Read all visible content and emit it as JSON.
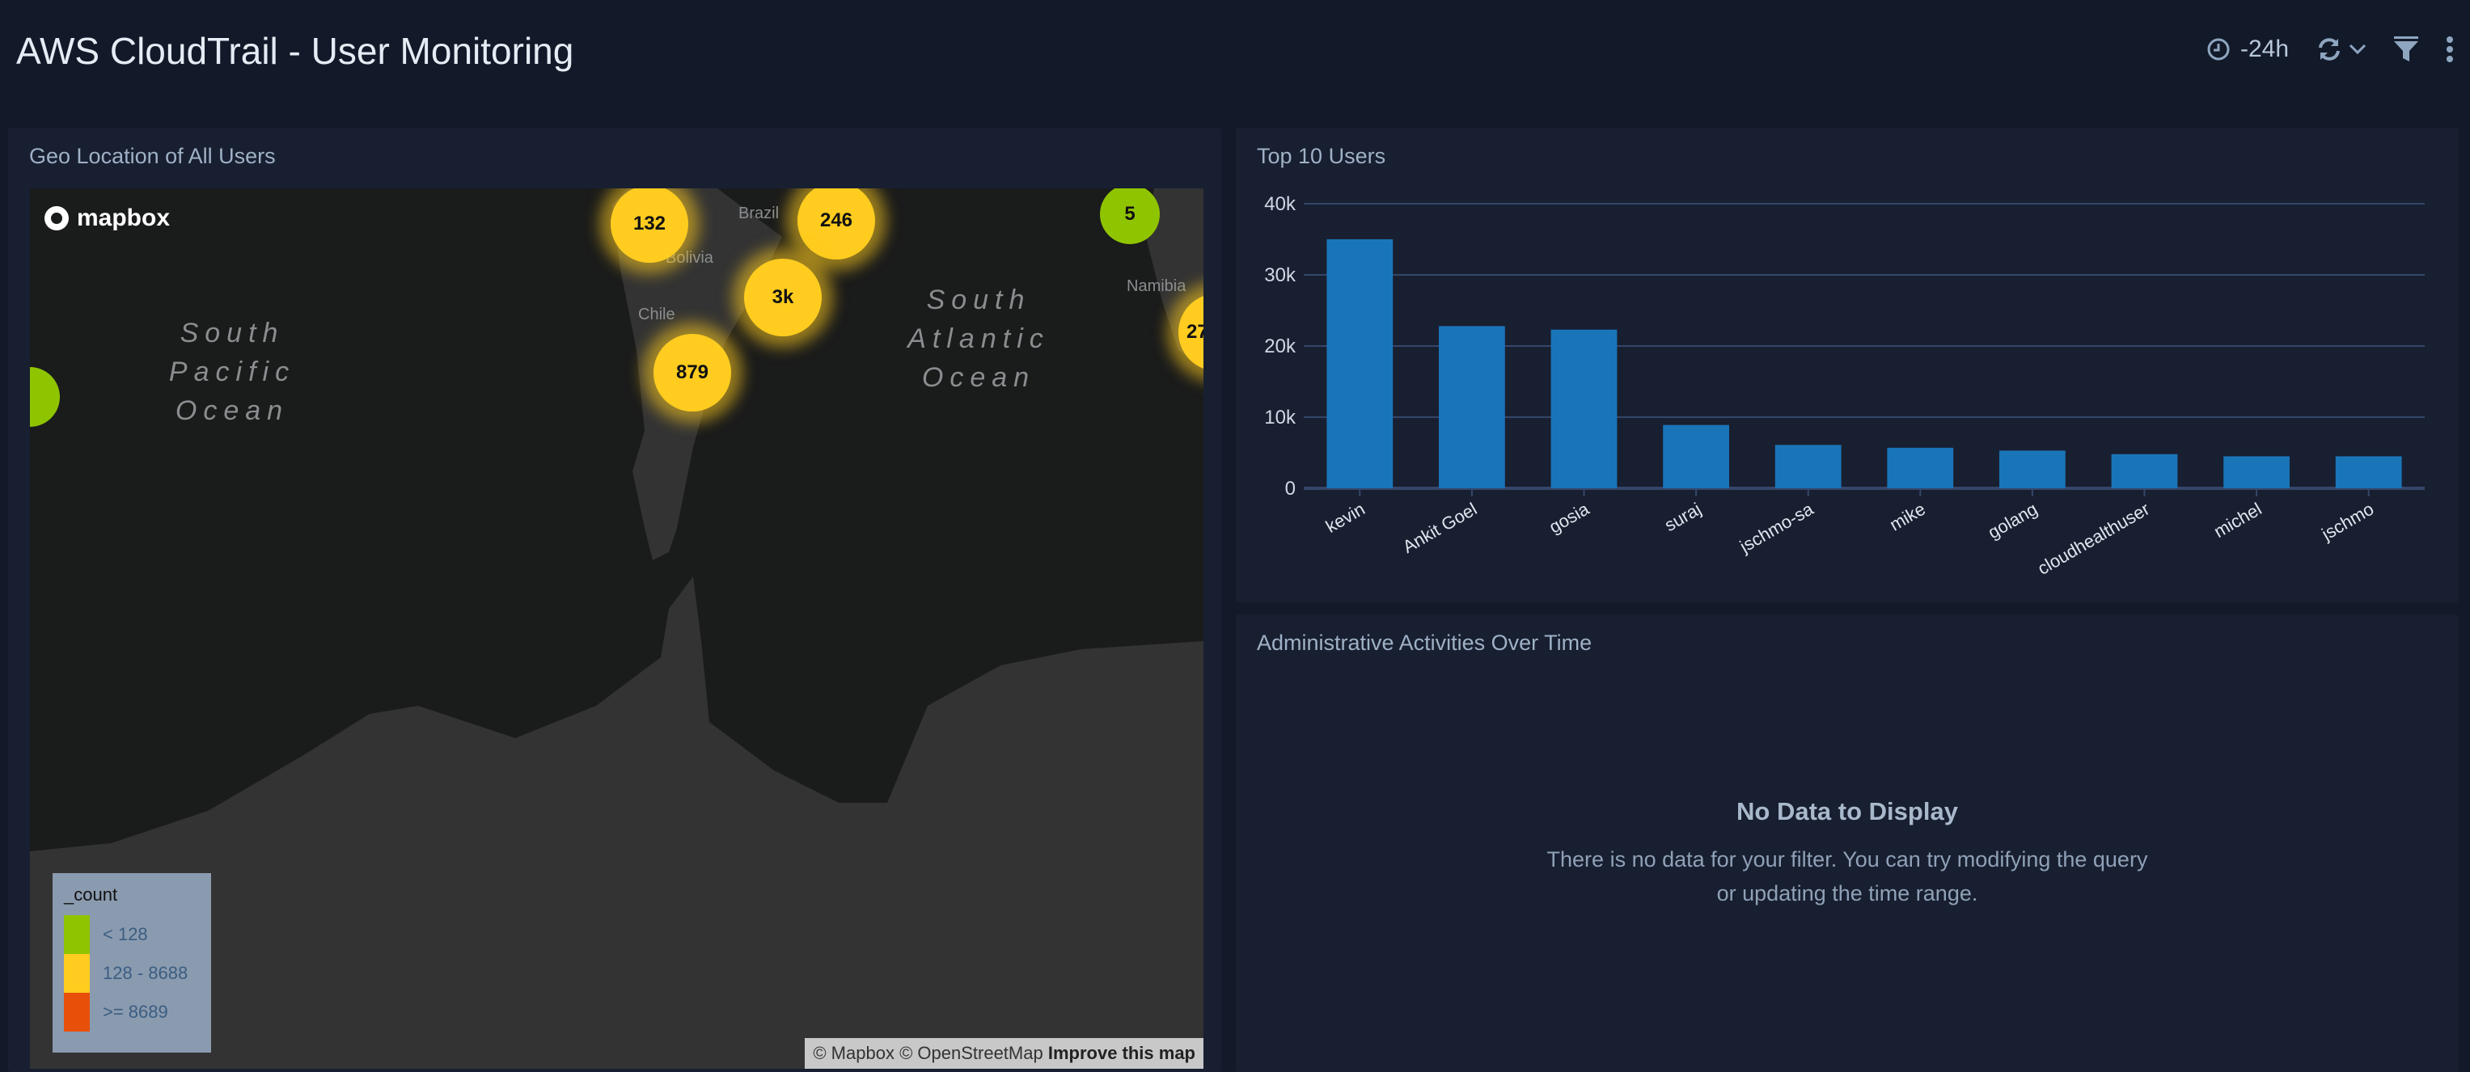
{
  "header": {
    "title": "AWS CloudTrail - User Monitoring",
    "time_range": "-24h",
    "icons": [
      "clock-icon",
      "refresh-icon",
      "chevron-down-icon",
      "filter-icon",
      "more-vertical-icon"
    ]
  },
  "geo_panel": {
    "title": "Geo Location of All Users",
    "logo": "mapbox",
    "clusters": [
      {
        "label": "132",
        "color": "yellow"
      },
      {
        "label": "246",
        "color": "yellow"
      },
      {
        "label": "3k",
        "color": "yellow"
      },
      {
        "label": "879",
        "color": "yellow"
      },
      {
        "label": "5",
        "color": "green"
      },
      {
        "label": "27",
        "color": "yellow"
      }
    ],
    "oceans": {
      "pacific": [
        "South",
        "Pacific",
        "Ocean"
      ],
      "atlantic": [
        "South",
        "Atlantic",
        "Ocean"
      ]
    },
    "countries": {
      "brazil": "Brazil",
      "bolivia": "Bolivia",
      "chile": "Chile",
      "namibia": "Namibia"
    },
    "legend": {
      "title": "_count",
      "items": [
        {
          "label": "< 128",
          "color": "#8fc400"
        },
        {
          "label": "128 - 8688",
          "color": "#ffcc1f"
        },
        {
          "label": ">= 8689",
          "color": "#e8500a"
        }
      ]
    },
    "attribution": {
      "mapbox": "© Mapbox",
      "osm": "© OpenStreetMap",
      "improve": "Improve this map"
    }
  },
  "users_panel": {
    "title": "Top 10 Users"
  },
  "chart_data": {
    "type": "bar",
    "categories": [
      "kevin",
      "Ankit Goel",
      "gosia",
      "suraj",
      "jschmo-sa",
      "mike",
      "golang",
      "cloudhealthuser",
      "michel",
      "jschmo"
    ],
    "values": [
      35000,
      22800,
      22300,
      8900,
      6100,
      5700,
      5300,
      4800,
      4500,
      4500
    ],
    "ylim": [
      0,
      40000
    ],
    "yticks": [
      "0",
      "10k",
      "20k",
      "30k",
      "40k"
    ],
    "grid": true,
    "bar_color": "#1a75b8"
  },
  "admin_panel": {
    "title": "Administrative Activities Over Time",
    "no_data_title": "No Data to Display",
    "no_data_line1": "There is no data for your filter. You can try modifying the query",
    "no_data_line2": "or updating the time range."
  }
}
